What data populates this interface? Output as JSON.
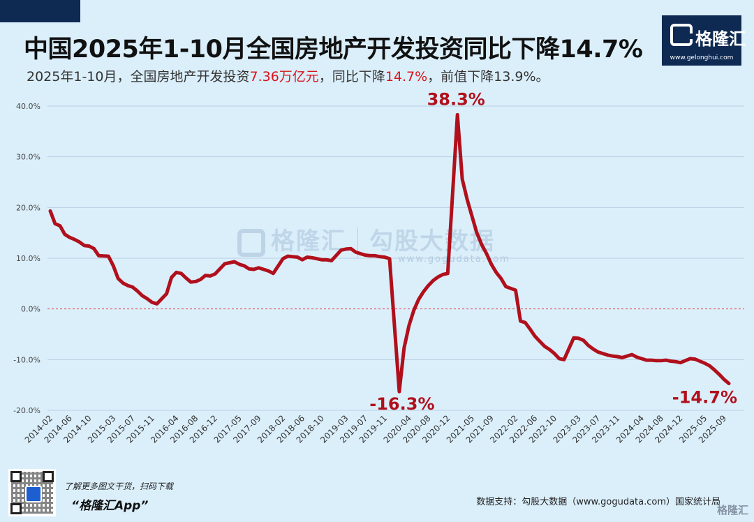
{
  "header": {
    "title": "中国2025年1-10月全国房地产开发投资同比下降14.7%",
    "subtitle_part1": "2025年1-10月，全国房地产开发投资",
    "subtitle_hl1": "7.36万亿元",
    "subtitle_part2": "，同比下降",
    "subtitle_hl2": "14.7%",
    "subtitle_part3": "，前值下降13.9%。"
  },
  "logo": {
    "text": "格隆汇",
    "url": "www.gelonghui.com"
  },
  "watermark": {
    "text1": "格隆汇",
    "text2": "勾股大数据",
    "url": "www.gogudata.com"
  },
  "footer": {
    "promo": "了解更多图文干货，扫码下载",
    "app": "“格隆汇App”",
    "source": "数据支持：勾股大数据（www.gogudata.com）国家统计局",
    "corner_logo": "格隆汇"
  },
  "colors": {
    "line": "#b0101c",
    "accent": "#d9141b",
    "background": "#dbeffb",
    "logo_bg": "#0e2a52"
  },
  "chart_data": {
    "type": "line",
    "title": "",
    "xlabel": "",
    "ylabel": "",
    "ylim": [
      -20,
      40
    ],
    "y_ticks": [
      "-20.0%",
      "-10.0%",
      "0.0%",
      "10.0%",
      "20.0%",
      "30.0%",
      "40.0%"
    ],
    "grid": "horizontal",
    "zero_reference": "dashed",
    "x_ticks": [
      "2014-02",
      "2014-06",
      "2014-10",
      "2015-03",
      "2015-07",
      "2015-11",
      "2016-04",
      "2016-08",
      "2016-12",
      "2017-05",
      "2017-09",
      "2018-02",
      "2018-06",
      "2018-10",
      "2019-03",
      "2019-07",
      "2019-11",
      "2020-04",
      "2020-08",
      "2020-12",
      "2021-05",
      "2021-09",
      "2022-02",
      "2022-06",
      "2022-10",
      "2023-03",
      "2023-07",
      "2023-11",
      "2024-04",
      "2024-08",
      "2024-12",
      "2025-05",
      "2025-09"
    ],
    "series": [
      {
        "name": "",
        "x": [
          "2014-02",
          "2014-03",
          "2014-04",
          "2014-05",
          "2014-06",
          "2014-07",
          "2014-08",
          "2014-09",
          "2014-10",
          "2014-11",
          "2014-12",
          "2015-02",
          "2015-03",
          "2015-04",
          "2015-05",
          "2015-06",
          "2015-07",
          "2015-08",
          "2015-09",
          "2015-10",
          "2015-11",
          "2015-12",
          "2016-02",
          "2016-03",
          "2016-04",
          "2016-05",
          "2016-06",
          "2016-07",
          "2016-08",
          "2016-09",
          "2016-10",
          "2016-11",
          "2016-12",
          "2017-02",
          "2017-03",
          "2017-04",
          "2017-05",
          "2017-06",
          "2017-07",
          "2017-08",
          "2017-09",
          "2017-10",
          "2017-11",
          "2017-12",
          "2018-02",
          "2018-03",
          "2018-04",
          "2018-05",
          "2018-06",
          "2018-07",
          "2018-08",
          "2018-09",
          "2018-10",
          "2018-11",
          "2018-12",
          "2019-02",
          "2019-03",
          "2019-04",
          "2019-05",
          "2019-06",
          "2019-07",
          "2019-08",
          "2019-09",
          "2019-10",
          "2019-11",
          "2019-12",
          "2020-02",
          "2020-03",
          "2020-04",
          "2020-05",
          "2020-06",
          "2020-07",
          "2020-08",
          "2020-09",
          "2020-10",
          "2020-11",
          "2020-12",
          "2021-02",
          "2021-03",
          "2021-04",
          "2021-05",
          "2021-06",
          "2021-07",
          "2021-08",
          "2021-09",
          "2021-10",
          "2021-11",
          "2021-12",
          "2022-02",
          "2022-03",
          "2022-04",
          "2022-05",
          "2022-06",
          "2022-07",
          "2022-08",
          "2022-09",
          "2022-10",
          "2022-11",
          "2022-12",
          "2023-02",
          "2023-03",
          "2023-04",
          "2023-05",
          "2023-06",
          "2023-07",
          "2023-08",
          "2023-09",
          "2023-10",
          "2023-11",
          "2023-12",
          "2024-02",
          "2024-03",
          "2024-04",
          "2024-05",
          "2024-06",
          "2024-07",
          "2024-08",
          "2024-09",
          "2024-10",
          "2024-11",
          "2024-12",
          "2025-02",
          "2025-03",
          "2025-04",
          "2025-05",
          "2025-06",
          "2025-07",
          "2025-08",
          "2025-09",
          "2025-10"
        ],
        "values": [
          19.3,
          16.8,
          16.4,
          14.7,
          14.1,
          13.7,
          13.2,
          12.5,
          12.4,
          11.9,
          10.5,
          10.4,
          8.5,
          6.0,
          5.1,
          4.6,
          4.3,
          3.5,
          2.6,
          2.0,
          1.3,
          1.0,
          3.0,
          6.2,
          7.2,
          7.0,
          6.1,
          5.3,
          5.4,
          5.8,
          6.6,
          6.5,
          6.9,
          8.9,
          9.1,
          9.3,
          8.8,
          8.5,
          7.9,
          7.8,
          8.1,
          7.8,
          7.5,
          7.0,
          9.9,
          10.4,
          10.3,
          10.2,
          9.7,
          10.2,
          10.1,
          9.9,
          9.7,
          9.7,
          9.5,
          11.6,
          11.8,
          11.9,
          11.2,
          10.9,
          10.6,
          10.5,
          10.5,
          10.3,
          10.2,
          9.9,
          -16.3,
          -7.7,
          -3.3,
          -0.3,
          1.9,
          3.4,
          4.6,
          5.6,
          6.3,
          6.8,
          7.0,
          38.3,
          25.6,
          21.6,
          18.3,
          15.0,
          12.7,
          10.9,
          8.8,
          7.2,
          6.0,
          4.4,
          3.7,
          -2.4,
          -2.7,
          -4.0,
          -5.4,
          -6.4,
          -7.4,
          -8.0,
          -8.8,
          -9.8,
          -10.0,
          -5.7,
          -5.8,
          -6.2,
          -7.2,
          -7.9,
          -8.5,
          -8.8,
          -9.1,
          -9.3,
          -9.4,
          -9.6,
          -9.0,
          -9.5,
          -9.8,
          -10.1,
          -10.1,
          -10.2,
          -10.2,
          -10.1,
          -10.3,
          -10.4,
          -10.6,
          -9.8,
          -9.9,
          -10.3,
          -10.7,
          -11.2,
          -12.0,
          -12.9,
          -13.9,
          -14.7
        ]
      }
    ],
    "annotations": [
      {
        "x": "2020-02",
        "label": "-16.3%"
      },
      {
        "x": "2021-02",
        "label": "38.3%"
      },
      {
        "x": "2025-10",
        "label": "-14.7%"
      }
    ]
  }
}
